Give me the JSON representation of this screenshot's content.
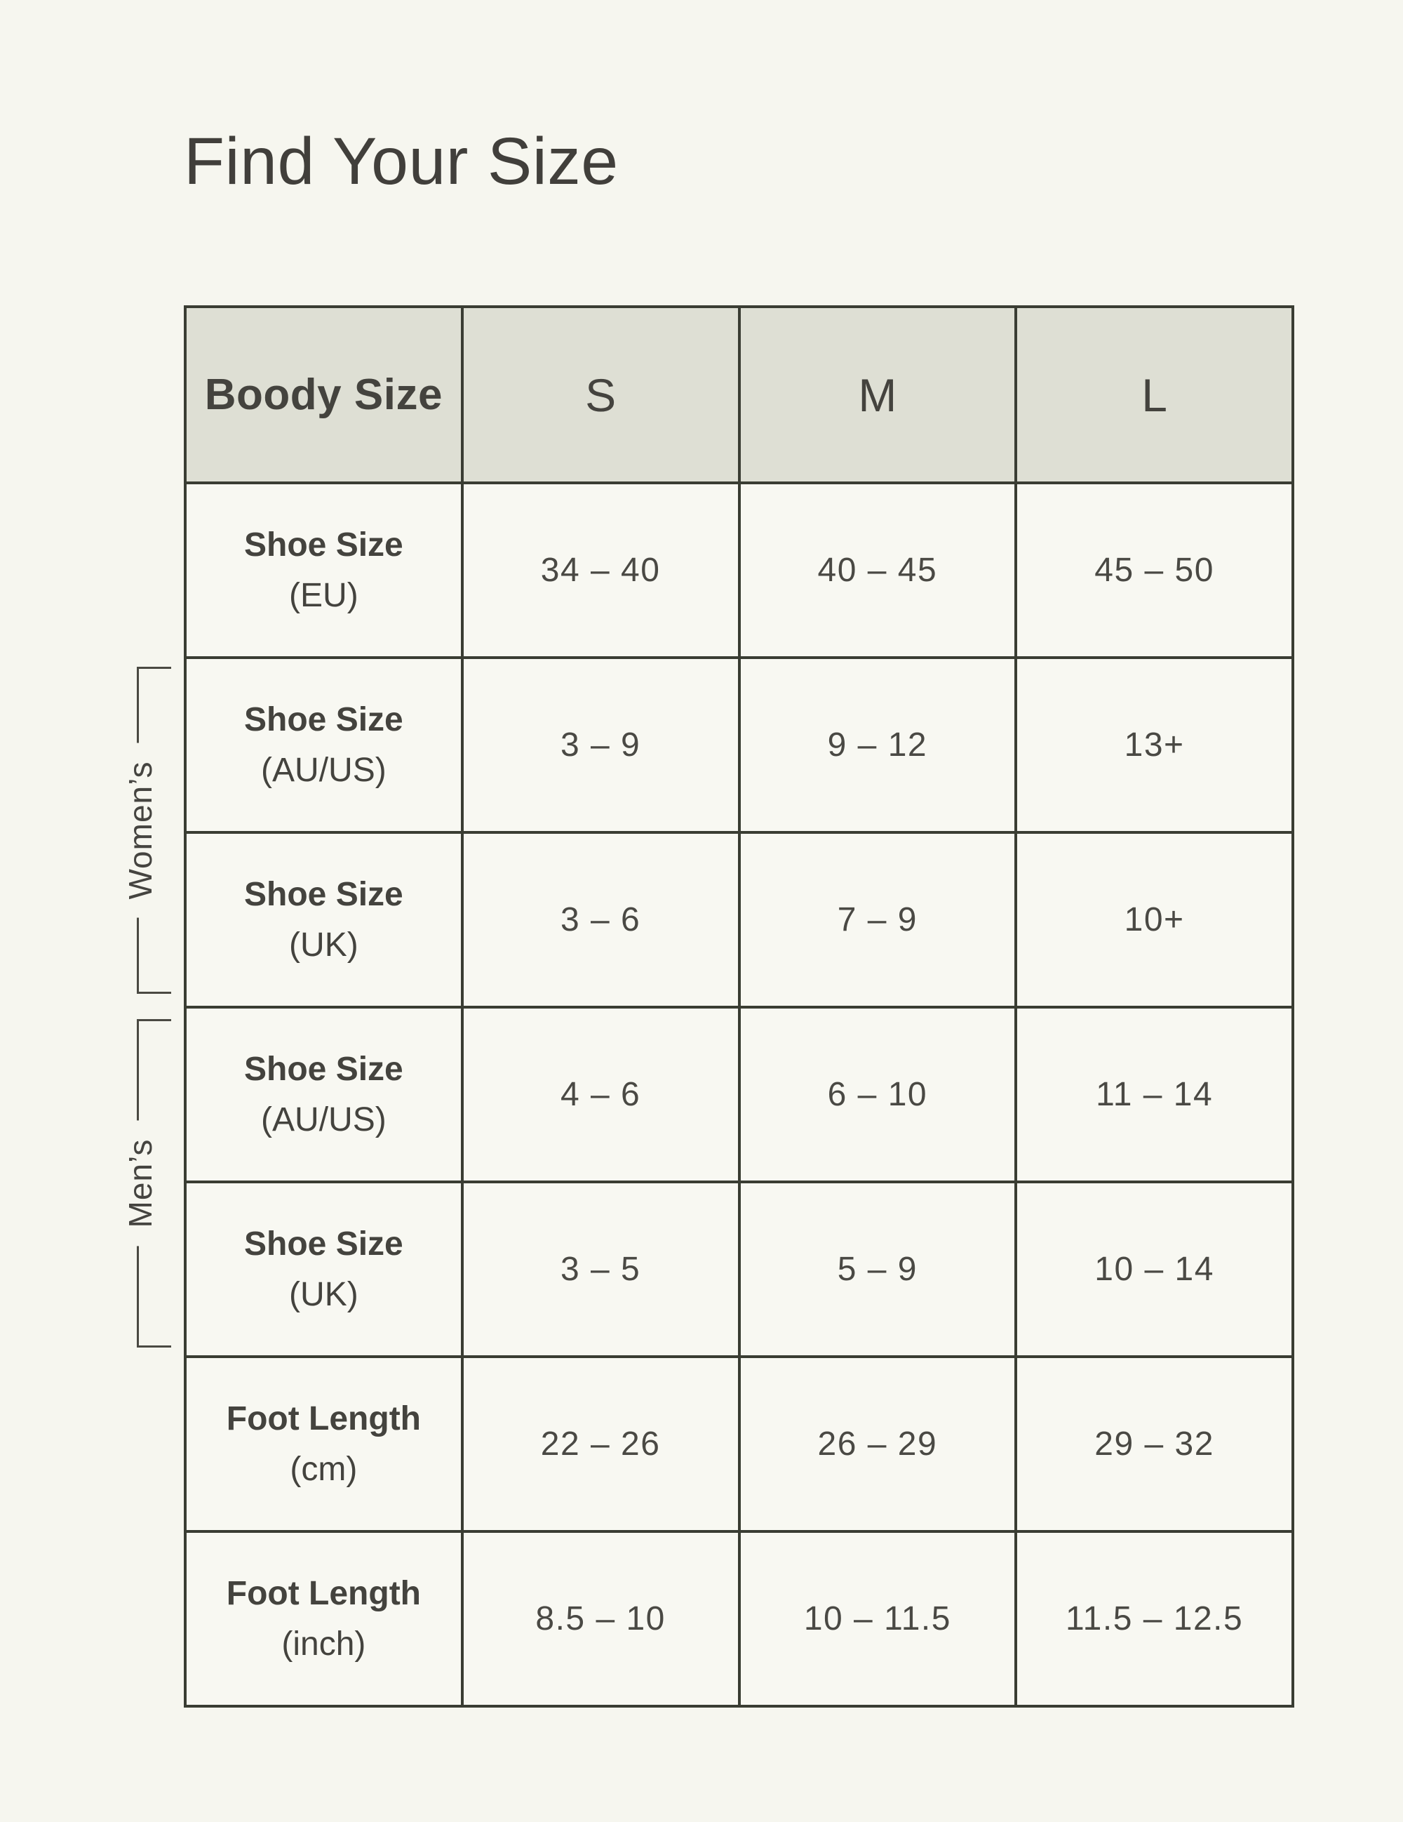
{
  "page": {
    "title": "Find Your Size"
  },
  "colors": {
    "page_background": "#f6f6ef",
    "cell_background": "#f8f8f2",
    "header_cell_background": "#dedfd4",
    "table_border": "#3a3d33",
    "text": "#44433e",
    "bracket_line": "#4a4942"
  },
  "table": {
    "header": {
      "label": "Boody Size",
      "sizes": [
        "S",
        "M",
        "L"
      ]
    },
    "rows": [
      {
        "label": "Shoe Size",
        "sublabel": "(EU)",
        "values": [
          "34 – 40",
          "40 – 45",
          "45 – 50"
        ]
      },
      {
        "label": "Shoe Size",
        "sublabel": "(AU/US)",
        "values": [
          "3 – 9",
          "9 – 12",
          "13+"
        ]
      },
      {
        "label": "Shoe Size",
        "sublabel": "(UK)",
        "values": [
          "3 – 6",
          "7 – 9",
          "10+"
        ]
      },
      {
        "label": "Shoe Size",
        "sublabel": "(AU/US)",
        "values": [
          "4 – 6",
          "6 – 10",
          "11 – 14"
        ]
      },
      {
        "label": "Shoe Size",
        "sublabel": "(UK)",
        "values": [
          "3 – 5",
          "5 – 9",
          "10 – 14"
        ]
      },
      {
        "label": "Foot Length",
        "sublabel": "(cm)",
        "values": [
          "22 – 26",
          "26 – 29",
          "29 – 32"
        ]
      },
      {
        "label": "Foot Length",
        "sublabel": "(inch)",
        "values": [
          "8.5 – 10",
          "10 – 11.5",
          "11.5 – 12.5"
        ]
      }
    ],
    "groups": [
      {
        "label": "Women’s"
      },
      {
        "label": "Men’s"
      }
    ]
  }
}
